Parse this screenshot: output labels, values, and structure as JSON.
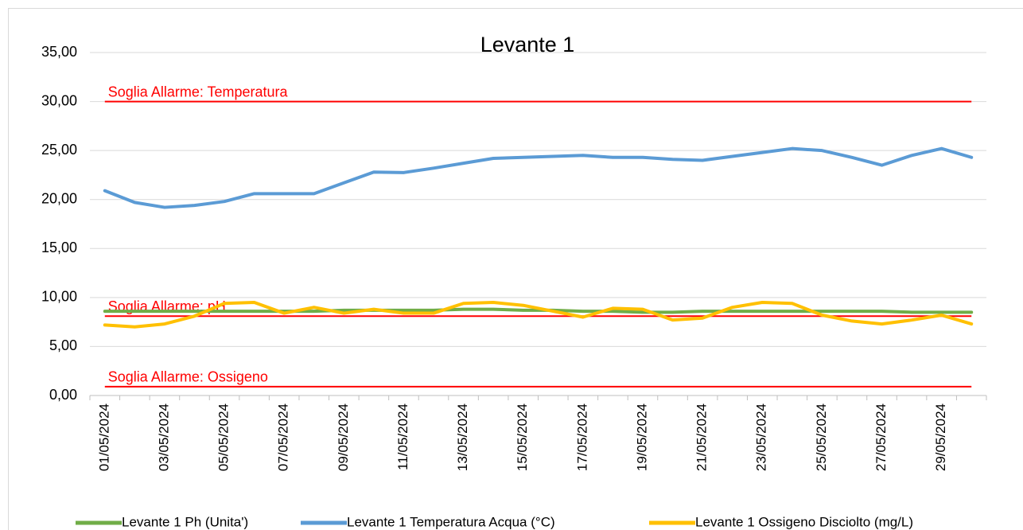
{
  "chart_data": {
    "type": "line",
    "title": "Levante 1",
    "categories": [
      "01/05/2024",
      null,
      "03/05/2024",
      null,
      "05/05/2024",
      null,
      "07/05/2024",
      null,
      "09/05/2024",
      null,
      "11/05/2024",
      null,
      "13/05/2024",
      null,
      "15/05/2024",
      null,
      "17/05/2024",
      null,
      "19/05/2024",
      null,
      "21/05/2024",
      null,
      "23/05/2024",
      null,
      "25/05/2024",
      null,
      "27/05/2024",
      null,
      "29/05/2024",
      null
    ],
    "series": [
      {
        "name": "Levante 1 Ph (Unita')",
        "color": "#70ad47",
        "values": [
          8.6,
          8.6,
          8.6,
          8.6,
          8.6,
          8.6,
          8.6,
          8.6,
          8.7,
          8.7,
          8.7,
          8.7,
          8.8,
          8.8,
          8.7,
          8.7,
          8.6,
          8.6,
          8.5,
          8.5,
          8.6,
          8.6,
          8.6,
          8.6,
          8.6,
          8.6,
          8.6,
          8.5,
          8.5,
          8.5
        ]
      },
      {
        "name": "Levante 1 Temperatura Acqua (°C)",
        "color": "#5b9bd5",
        "values": [
          20.9,
          19.7,
          19.2,
          19.4,
          19.8,
          20.6,
          20.6,
          20.6,
          21.7,
          22.8,
          22.75,
          23.2,
          23.7,
          24.2,
          24.3,
          24.4,
          24.5,
          24.3,
          24.3,
          24.1,
          24.0,
          24.4,
          24.8,
          25.2,
          25.0,
          24.3,
          23.5,
          24.5,
          25.2,
          24.3
        ]
      },
      {
        "name": "Levante 1 Ossigeno Disciolto (mg/L)",
        "color": "#ffc000",
        "values": [
          7.2,
          7.0,
          7.3,
          8.1,
          9.4,
          9.5,
          8.4,
          9.0,
          8.4,
          8.8,
          8.4,
          8.4,
          9.4,
          9.5,
          9.2,
          8.6,
          8.0,
          8.9,
          8.8,
          7.7,
          7.9,
          9.0,
          9.5,
          9.4,
          8.2,
          7.6,
          7.3,
          7.7,
          8.2,
          7.3
        ]
      }
    ],
    "thresholds": [
      {
        "label": "Soglia Allarme: Temperatura",
        "value": 30,
        "color": "#ff0000"
      },
      {
        "label": "Soglia Allarme: pH",
        "value": 8.1,
        "color": "#ff0000"
      },
      {
        "label": "Soglia Allarme: Ossigeno",
        "value": 0.9,
        "color": "#ff0000"
      }
    ],
    "ylim": [
      0,
      35
    ],
    "yticks": [
      {
        "value": 0,
        "label": "0,00"
      },
      {
        "value": 5,
        "label": "5,00"
      },
      {
        "value": 10,
        "label": "10,00"
      },
      {
        "value": 15,
        "label": "15,00"
      },
      {
        "value": 20,
        "label": "20,00"
      },
      {
        "value": 25,
        "label": "25,00"
      },
      {
        "value": 30,
        "label": "30,00"
      },
      {
        "value": 35,
        "label": "35,00"
      }
    ],
    "grid": true,
    "legend": "bottom"
  }
}
